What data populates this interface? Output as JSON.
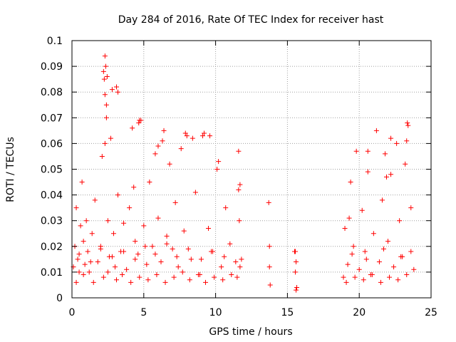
{
  "chart_data": {
    "type": "scatter",
    "title": "Day 284 of 2016, Rate Of TEC Index for receiver hast",
    "xlabel": "GPS time / hours",
    "ylabel": "ROTI / TECUs",
    "xlim": [
      0,
      25
    ],
    "ylim": [
      0,
      0.1
    ],
    "xticks": [
      0,
      5,
      10,
      15,
      20,
      25
    ],
    "xtick_labels": [
      "0",
      "5",
      "10",
      "15",
      "20",
      "25"
    ],
    "yticks": [
      0,
      0.01,
      0.02,
      0.03,
      0.04,
      0.05,
      0.06,
      0.07,
      0.08,
      0.09,
      0.1
    ],
    "ytick_labels": [
      "0",
      "0.01",
      "0.02",
      "0.03",
      "0.04",
      "0.05",
      "0.06",
      "0.07",
      "0.08",
      "0.09",
      "0.1"
    ],
    "grid": true,
    "marker": "+",
    "color": "#ff0000",
    "series": [
      {
        "name": "ROTI",
        "x": [
          0.1,
          0.2,
          0.3,
          0.4,
          0.5,
          0.6,
          0.7,
          0.8,
          0.9,
          1.0,
          1.1,
          1.2,
          1.4,
          1.6,
          1.8,
          2.0,
          2.1,
          2.2,
          2.3,
          2.4,
          2.5,
          2.6,
          2.7,
          2.8,
          2.9,
          3.0,
          3.2,
          3.4,
          3.6,
          3.8,
          4.0,
          4.2,
          4.4,
          4.6,
          4.8,
          5.0,
          5.2,
          5.4,
          5.6,
          5.8,
          6.0,
          6.2,
          6.4,
          6.6,
          6.8,
          7.0,
          7.2,
          7.4,
          7.6,
          7.8,
          8.0,
          8.3,
          8.6,
          8.9,
          9.2,
          9.5,
          9.8,
          10.1,
          10.4,
          10.7,
          11.0,
          11.5,
          11.6,
          11.7,
          11.8,
          13.7,
          13.75,
          13.8,
          15.5,
          15.55,
          15.6,
          15.65,
          18.9,
          19.0,
          19.2,
          19.4,
          19.6,
          19.8,
          20.0,
          20.2,
          20.4,
          20.6,
          20.8,
          21.0,
          21.2,
          21.4,
          21.6,
          21.8,
          22.0,
          22.2,
          22.4,
          22.6,
          22.8,
          23.0,
          23.2,
          23.4,
          23.6,
          23.8,
          0.3,
          0.8,
          1.5,
          2.2,
          2.5,
          3.1,
          3.5,
          4.1,
          4.7,
          5.3,
          5.9,
          6.5,
          7.1,
          7.7,
          8.2,
          8.8,
          9.3,
          9.9,
          10.5,
          11.1,
          19.1,
          19.7,
          20.3,
          20.9,
          21.5,
          22.1,
          22.7,
          23.3,
          0.5,
          1.3,
          2.0,
          2.8,
          3.6,
          4.4,
          5.1,
          5.8,
          6.6,
          7.3,
          8.1,
          9.0,
          9.7,
          10.6,
          11.4,
          19.5,
          20.5,
          21.7,
          22.9,
          23.6,
          2.25,
          2.3,
          2.35,
          2.4,
          2.45,
          3.1,
          3.2,
          4.65,
          4.7,
          6.0,
          7.9,
          9.1,
          9.6,
          2.3,
          4.3,
          6.3,
          8.4,
          10.2,
          20.6,
          22.2,
          23.3,
          23.35,
          11.6,
          11.65,
          11.7,
          15.55,
          15.6,
          13.75,
          19.3,
          21.9
        ],
        "y": [
          0.012,
          0.02,
          0.035,
          0.015,
          0.01,
          0.028,
          0.045,
          0.022,
          0.013,
          0.03,
          0.018,
          0.01,
          0.025,
          0.038,
          0.014,
          0.02,
          0.055,
          0.088,
          0.094,
          0.07,
          0.03,
          0.016,
          0.062,
          0.081,
          0.025,
          0.012,
          0.04,
          0.018,
          0.029,
          0.011,
          0.035,
          0.066,
          0.022,
          0.017,
          0.069,
          0.028,
          0.013,
          0.045,
          0.02,
          0.056,
          0.031,
          0.014,
          0.065,
          0.024,
          0.052,
          0.019,
          0.037,
          0.012,
          0.058,
          0.026,
          0.063,
          0.015,
          0.041,
          0.009,
          0.064,
          0.027,
          0.018,
          0.05,
          0.012,
          0.035,
          0.021,
          0.008,
          0.057,
          0.044,
          0.015,
          0.037,
          0.02,
          0.005,
          0.018,
          0.01,
          0.014,
          0.004,
          0.008,
          0.027,
          0.013,
          0.045,
          0.02,
          0.057,
          0.011,
          0.034,
          0.018,
          0.049,
          0.009,
          0.025,
          0.065,
          0.014,
          0.038,
          0.056,
          0.022,
          0.048,
          0.012,
          0.06,
          0.03,
          0.016,
          0.052,
          0.067,
          0.035,
          0.011,
          0.006,
          0.009,
          0.006,
          0.008,
          0.01,
          0.007,
          0.009,
          0.006,
          0.008,
          0.007,
          0.009,
          0.006,
          0.008,
          0.01,
          0.007,
          0.009,
          0.006,
          0.008,
          0.007,
          0.009,
          0.006,
          0.008,
          0.007,
          0.009,
          0.006,
          0.008,
          0.007,
          0.009,
          0.017,
          0.014,
          0.019,
          0.016,
          0.018,
          0.015,
          0.02,
          0.017,
          0.021,
          0.016,
          0.019,
          0.015,
          0.018,
          0.016,
          0.014,
          0.017,
          0.015,
          0.019,
          0.016,
          0.018,
          0.085,
          0.079,
          0.09,
          0.075,
          0.086,
          0.082,
          0.08,
          0.068,
          0.069,
          0.059,
          0.064,
          0.063,
          0.063,
          0.06,
          0.043,
          0.061,
          0.062,
          0.053,
          0.057,
          0.062,
          0.061,
          0.068,
          0.042,
          0.03,
          0.012,
          0.018,
          0.003,
          0.012,
          0.031,
          0.047
        ]
      }
    ]
  }
}
